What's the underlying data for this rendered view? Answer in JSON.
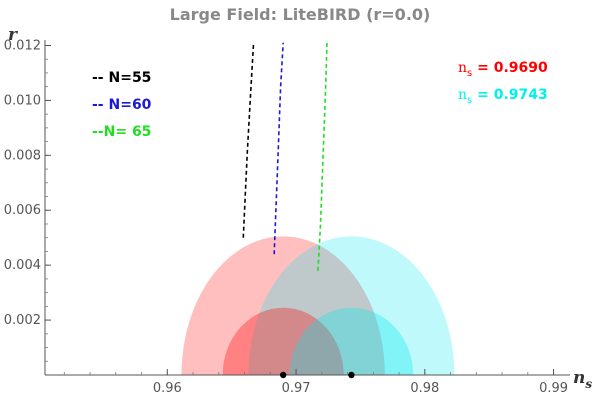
{
  "chart_data": {
    "type": "scatter",
    "title": "Large Field: LiteBIRD (r=0.0)",
    "xlabel": "n",
    "xlabel_sub": "s",
    "ylabel": "r",
    "xlim": [
      0.9505,
      0.9905
    ],
    "ylim": [
      0.0,
      0.0122
    ],
    "x_ticks": [
      0.96,
      0.97,
      0.98,
      0.99
    ],
    "x_tick_labels": [
      "0.96",
      "0.97",
      "0.98",
      "0.99"
    ],
    "x_minor_step": 0.002,
    "y_ticks": [
      0.002,
      0.004,
      0.006,
      0.008,
      0.01,
      0.012
    ],
    "y_tick_labels": [
      "0.002",
      "0.004",
      "0.006",
      "0.008",
      "0.010",
      "0.012"
    ],
    "y_minor_step": 0.0005,
    "grid": false,
    "legend_position": "top-left",
    "series": [
      {
        "name": "N=55",
        "legend_label": "-- N=55",
        "color": "#000000",
        "style": "dashed",
        "x": [
          0.9659,
          0.9662,
          0.9665,
          0.9667
        ],
        "y": [
          0.005,
          0.008,
          0.0105,
          0.0121
        ]
      },
      {
        "name": "N=60",
        "legend_label": "-- N=60",
        "color": "#1a1ad6",
        "style": "dashed",
        "x": [
          0.9683,
          0.9686,
          0.9688,
          0.969
        ],
        "y": [
          0.0044,
          0.008,
          0.0105,
          0.0121
        ]
      },
      {
        "name": "N= 65",
        "legend_label": "--N= 65",
        "color": "#22dd22",
        "style": "dashed",
        "x": [
          0.9717,
          0.9719,
          0.9721,
          0.9723,
          0.9724
        ],
        "y": [
          0.0038,
          0.0055,
          0.008,
          0.0105,
          0.0121
        ]
      }
    ],
    "contours": [
      {
        "name": "n_s = 0.9690",
        "color": "#ff0000",
        "center_x": 0.969,
        "outer_radius_x": 0.0079,
        "outer_radius_y": 0.00505,
        "inner_radius_x": 0.0047,
        "inner_radius_y": 0.00245,
        "outer_opacity": 0.25,
        "inner_opacity": 0.32
      },
      {
        "name": "n_s = 0.9743",
        "color": "#00e8f0",
        "center_x": 0.9743,
        "outer_radius_x": 0.008,
        "outer_radius_y": 0.00505,
        "inner_radius_x": 0.0048,
        "inner_radius_y": 0.00245,
        "outer_opacity": 0.25,
        "inner_opacity": 0.32
      }
    ],
    "center_points": [
      {
        "x": 0.969,
        "y": 0.0
      },
      {
        "x": 0.9743,
        "y": 0.0
      }
    ],
    "annotations": [
      {
        "label": "n",
        "sub": "s",
        "rest": " = 0.9690",
        "color": "#ff0000"
      },
      {
        "label": "n",
        "sub": "s",
        "rest": " = 0.9743",
        "color": "#00f0f0"
      }
    ]
  }
}
